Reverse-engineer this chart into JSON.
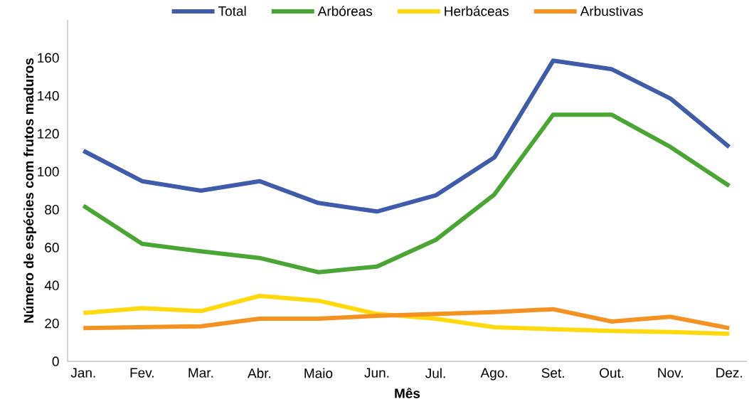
{
  "chart_data": {
    "type": "line",
    "xlabel": "Mês",
    "ylabel": "Número de espécies com frutos maduros",
    "categories": [
      "Jan.",
      "Fev.",
      "Mar.",
      "Abr.",
      "Maio",
      "Jun.",
      "Jul.",
      "Ago.",
      "Set.",
      "Out.",
      "Nov.",
      "Dez."
    ],
    "series": [
      {
        "name": "Total",
        "color": "#3f5ba9",
        "values": [
          111,
          95,
          90,
          95,
          83.5,
          79,
          87.5,
          107.5,
          158.5,
          154,
          138.5,
          113
        ]
      },
      {
        "name": "Arbóreas",
        "color": "#4aa535",
        "values": [
          82,
          62,
          58,
          54.5,
          47,
          50,
          64,
          88,
          130,
          130,
          113,
          92.5
        ]
      },
      {
        "name": "Herbáceas",
        "color": "#fdd90d",
        "values": [
          25.5,
          28,
          26.5,
          34.5,
          32,
          25,
          22.5,
          18,
          17,
          16,
          15.5,
          14.5
        ]
      },
      {
        "name": "Arbustivas",
        "color": "#f39220",
        "values": [
          17.5,
          18,
          18.5,
          22.5,
          22.5,
          24,
          25,
          26,
          27.5,
          21,
          23.5,
          17.5
        ]
      }
    ],
    "ylim": [
      0,
      180
    ],
    "yticks": [
      0,
      20,
      40,
      60,
      80,
      100,
      120,
      140,
      160
    ],
    "grid": false,
    "legend": "top",
    "marker": "none",
    "line_style": "solid"
  }
}
